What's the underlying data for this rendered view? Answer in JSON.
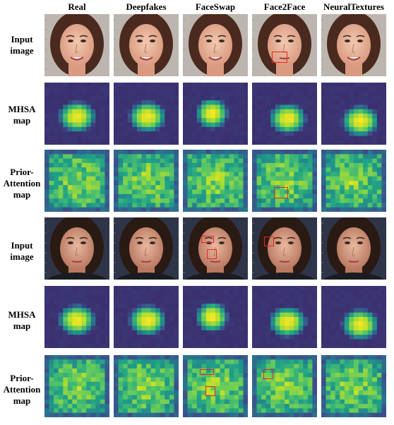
{
  "columns": [
    "Real",
    "Deepfakes",
    "FaceSwap",
    "Face2Face",
    "NeuralTextures"
  ],
  "rows": [
    {
      "label_lines": [
        "Input",
        "image"
      ]
    },
    {
      "label_lines": [
        "MHSA",
        "map"
      ]
    },
    {
      "label_lines": [
        "Prior-",
        "Attention",
        "map"
      ]
    },
    {
      "label_lines": [
        "Input",
        "image"
      ]
    },
    {
      "label_lines": [
        "MHSA",
        "map"
      ]
    },
    {
      "label_lines": [
        "Prior-",
        "Attention",
        "map"
      ]
    }
  ],
  "colors": {
    "highlight_box": "#e8262a",
    "heatmap_low": "#3b2a6b",
    "heatmap_mid": "#21908d",
    "heatmap_high": "#fde725"
  }
}
